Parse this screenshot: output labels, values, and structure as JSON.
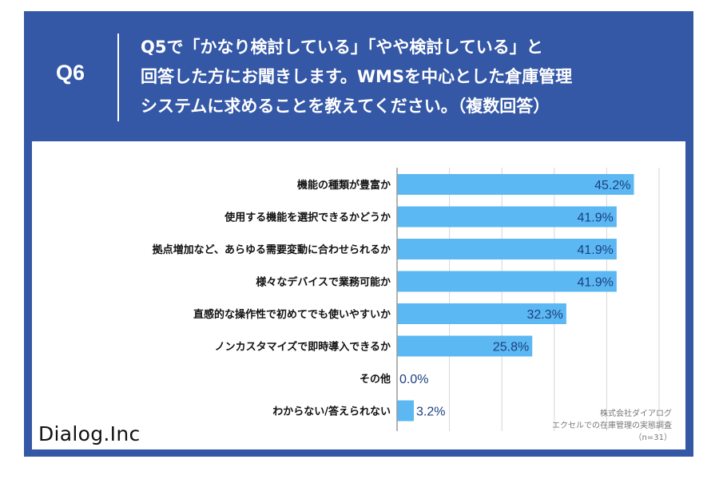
{
  "header": {
    "question_number": "Q6",
    "question_lines": [
      "Q5で「かなり検討している」「やや検討している」と",
      "回答した方にお聞きします。WMSを中心とした倉庫管理",
      "システムに求めることを教えてください。（複数回答）"
    ]
  },
  "footer": {
    "logo": "Dialog.Inc",
    "source_lines": [
      "株式会社ダイアログ",
      "エクセルでの在庫管理の実態調査",
      "（n=31）"
    ]
  },
  "colors": {
    "frame": "#3457a6",
    "bar": "#5bb8f2",
    "value_label": "#1d3f80"
  },
  "chart_data": {
    "type": "bar",
    "orientation": "horizontal",
    "categories": [
      "機能の種類が豊富か",
      "使用する機能を選択できるかどうか",
      "拠点増加など、あらゆる需要変動に合わせられるか",
      "様々なデバイスで業務可能か",
      "直感的な操作性で初めてでも使いやすいか",
      "ノンカスタマイズで即時導入できるか",
      "その他",
      "わからない/答えられない"
    ],
    "values": [
      45.2,
      41.9,
      41.9,
      41.9,
      32.3,
      25.8,
      0.0,
      3.2
    ],
    "value_labels": [
      "45.2%",
      "41.9%",
      "41.9%",
      "41.9%",
      "32.3%",
      "25.8%",
      "0.0%",
      "3.2%"
    ],
    "xlim": [
      0,
      50
    ],
    "grid": true
  }
}
